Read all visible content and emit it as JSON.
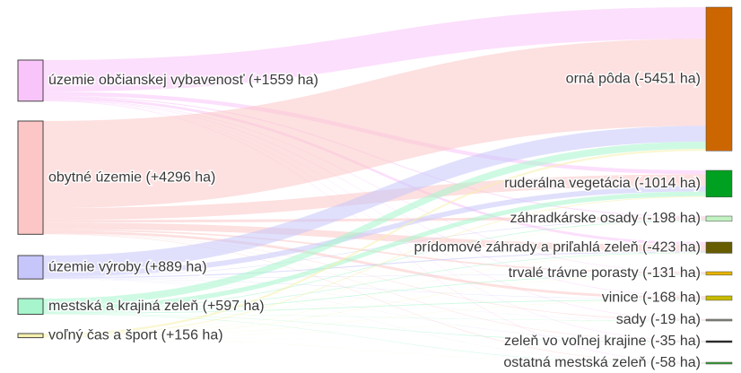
{
  "chart_data": {
    "type": "sankey",
    "sources": [
      {
        "label": "územie občianskej vybavenosť (+1559 ha)",
        "value": 1559,
        "color": "#f9c4f9"
      },
      {
        "label": "obytné územie (+4296 ha)",
        "value": 4296,
        "color": "#fcc6c6"
      },
      {
        "label": "územie výroby (+889 ha)",
        "value": 889,
        "color": "#c6c6fa"
      },
      {
        "label": "mestská a krajiná zeleň (+597 ha)",
        "value": 597,
        "color": "#a6f5cc"
      },
      {
        "label": "voľný čas a šport (+156 ha)",
        "value": 156,
        "color": "#f5f0ad"
      }
    ],
    "targets": [
      {
        "label": "orná pôda (-5451 ha)",
        "value": 5451,
        "color": "#cc6600"
      },
      {
        "label": "ruderálna vegetácia (-1014 ha)",
        "value": 1014,
        "color": "#00a020"
      },
      {
        "label": "záhradkárske osady (-198 ha)",
        "value": 198,
        "color": "#c2f2c2"
      },
      {
        "label": "prídomové záhrady a priľahlá zeleň (-423 ha)",
        "value": 423,
        "color": "#665c00"
      },
      {
        "label": "trvalé trávne porasty (-131 ha)",
        "value": 131,
        "color": "#e6b400"
      },
      {
        "label": "vinice (-168 ha)",
        "value": 168,
        "color": "#c8bc00"
      },
      {
        "label": "sady (-19 ha)",
        "value": 19,
        "color": "#8a8a80"
      },
      {
        "label": "zeleň vo voľnej krajine (-35 ha)",
        "value": 35,
        "color": "#222222"
      },
      {
        "label": "ostatná mestská zeleň (-58 ha)",
        "value": 58,
        "color": "#36a336"
      }
    ],
    "links": [
      {
        "source": 0,
        "target": 0,
        "value": 1200
      },
      {
        "source": 0,
        "target": 1,
        "value": 150
      },
      {
        "source": 0,
        "target": 2,
        "value": 40
      },
      {
        "source": 0,
        "target": 3,
        "value": 100
      },
      {
        "source": 0,
        "target": 4,
        "value": 20
      },
      {
        "source": 0,
        "target": 5,
        "value": 20
      },
      {
        "source": 0,
        "target": 6,
        "value": 5
      },
      {
        "source": 0,
        "target": 7,
        "value": 8
      },
      {
        "source": 0,
        "target": 8,
        "value": 16
      },
      {
        "source": 1,
        "target": 0,
        "value": 3301
      },
      {
        "source": 1,
        "target": 1,
        "value": 450
      },
      {
        "source": 1,
        "target": 2,
        "value": 100
      },
      {
        "source": 1,
        "target": 3,
        "value": 250
      },
      {
        "source": 1,
        "target": 4,
        "value": 60
      },
      {
        "source": 1,
        "target": 5,
        "value": 100
      },
      {
        "source": 1,
        "target": 6,
        "value": 7
      },
      {
        "source": 1,
        "target": 7,
        "value": 10
      },
      {
        "source": 1,
        "target": 8,
        "value": 18
      },
      {
        "source": 2,
        "target": 0,
        "value": 600
      },
      {
        "source": 2,
        "target": 1,
        "value": 200
      },
      {
        "source": 2,
        "target": 2,
        "value": 20
      },
      {
        "source": 2,
        "target": 3,
        "value": 40
      },
      {
        "source": 2,
        "target": 4,
        "value": 10
      },
      {
        "source": 2,
        "target": 5,
        "value": 10
      },
      {
        "source": 2,
        "target": 6,
        "value": 2
      },
      {
        "source": 2,
        "target": 7,
        "value": 3
      },
      {
        "source": 2,
        "target": 8,
        "value": 4
      },
      {
        "source": 3,
        "target": 0,
        "value": 270
      },
      {
        "source": 3,
        "target": 1,
        "value": 180
      },
      {
        "source": 3,
        "target": 2,
        "value": 30
      },
      {
        "source": 3,
        "target": 3,
        "value": 25
      },
      {
        "source": 3,
        "target": 4,
        "value": 30
      },
      {
        "source": 3,
        "target": 5,
        "value": 30
      },
      {
        "source": 3,
        "target": 6,
        "value": 4
      },
      {
        "source": 3,
        "target": 7,
        "value": 13
      },
      {
        "source": 3,
        "target": 8,
        "value": 15
      },
      {
        "source": 4,
        "target": 0,
        "value": 80
      },
      {
        "source": 4,
        "target": 1,
        "value": 34
      },
      {
        "source": 4,
        "target": 2,
        "value": 8
      },
      {
        "source": 4,
        "target": 3,
        "value": 8
      },
      {
        "source": 4,
        "target": 4,
        "value": 11
      },
      {
        "source": 4,
        "target": 5,
        "value": 8
      },
      {
        "source": 4,
        "target": 6,
        "value": 1
      },
      {
        "source": 4,
        "target": 7,
        "value": 1
      },
      {
        "source": 4,
        "target": 8,
        "value": 5
      }
    ]
  }
}
